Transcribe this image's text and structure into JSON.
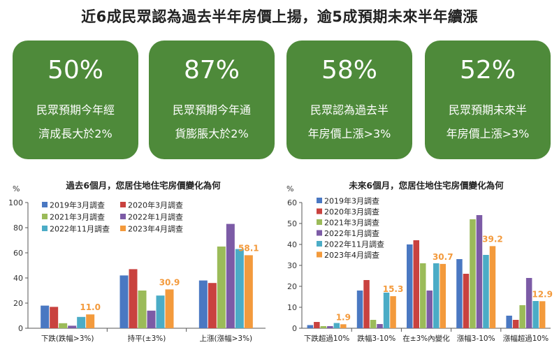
{
  "headline": "近6成民眾認為過去半年房價上揚，逾5成預期未來半年續漲",
  "cards": [
    {
      "value": "50%",
      "line1": "民眾預期今年經",
      "line2": "濟成長大於2%"
    },
    {
      "value": "87%",
      "line1": "民眾預期今年通",
      "line2": "貨膨脹大於2%"
    },
    {
      "value": "58%",
      "line1": "民眾認為過去半",
      "line2": "年房價上漲>3%"
    },
    {
      "value": "52%",
      "line1": "民眾預期未來半",
      "line2": "年房價上漲>3%"
    }
  ],
  "colors": {
    "card": "#4e8a3a",
    "series": [
      "#4a78c2",
      "#c9423f",
      "#9bbb59",
      "#7c5ba6",
      "#4bacc6",
      "#f39a3c"
    ],
    "highlight": "#f39a3c"
  },
  "chart_data": [
    {
      "type": "bar",
      "title": "過去6個月，您居住地住宅房價變化為何",
      "ylabel": "%",
      "ylim": [
        0,
        100
      ],
      "yticks": [
        0,
        20,
        40,
        60,
        80,
        100
      ],
      "categories": [
        "下跌(跌幅>3%)",
        "持平(±3%)",
        "上漲(漲幅>3%)"
      ],
      "series": [
        {
          "name": "2019年3月調查",
          "values": [
            18,
            42,
            38
          ]
        },
        {
          "name": "2020年3月調查",
          "values": [
            17,
            47,
            36
          ]
        },
        {
          "name": "2021年3月調查",
          "values": [
            4,
            30,
            65
          ]
        },
        {
          "name": "2022年1月調查",
          "values": [
            2,
            14,
            83
          ]
        },
        {
          "name": "2022年11月調查",
          "values": [
            9,
            26,
            63
          ]
        },
        {
          "name": "2023年4月調查",
          "values": [
            11.0,
            30.9,
            58.1
          ]
        }
      ],
      "data_labels": [
        "11.0",
        "30.9",
        "58.1"
      ],
      "grid": false,
      "legend": "top-left"
    },
    {
      "type": "bar",
      "title": "未來6個月，您居住地住宅房價變化為何",
      "ylabel": "%",
      "ylim": [
        0,
        60
      ],
      "yticks": [
        0,
        10,
        20,
        30,
        40,
        50,
        60
      ],
      "categories": [
        "下跌超過10%",
        "跌幅3-10%",
        "在±3%內變化",
        "漲幅3-10%",
        "漲幅超過10%"
      ],
      "series": [
        {
          "name": "2019年3月調查",
          "values": [
            1.5,
            18,
            40,
            33,
            6
          ]
        },
        {
          "name": "2020年3月調查",
          "values": [
            3,
            23,
            42,
            26,
            4
          ]
        },
        {
          "name": "2021年3月調查",
          "values": [
            1,
            4,
            31,
            52,
            11
          ]
        },
        {
          "name": "2022年1月調查",
          "values": [
            1,
            2,
            18,
            54,
            24
          ]
        },
        {
          "name": "2022年11月調查",
          "values": [
            2.5,
            17,
            31,
            35,
            13
          ]
        },
        {
          "name": "2023年4月調查",
          "values": [
            1.9,
            15.3,
            30.7,
            39.2,
            12.9
          ]
        }
      ],
      "data_labels": [
        "1.9",
        "15.3",
        "30.7",
        "39.2",
        "12.9"
      ],
      "grid": false,
      "legend": "top-left"
    }
  ]
}
